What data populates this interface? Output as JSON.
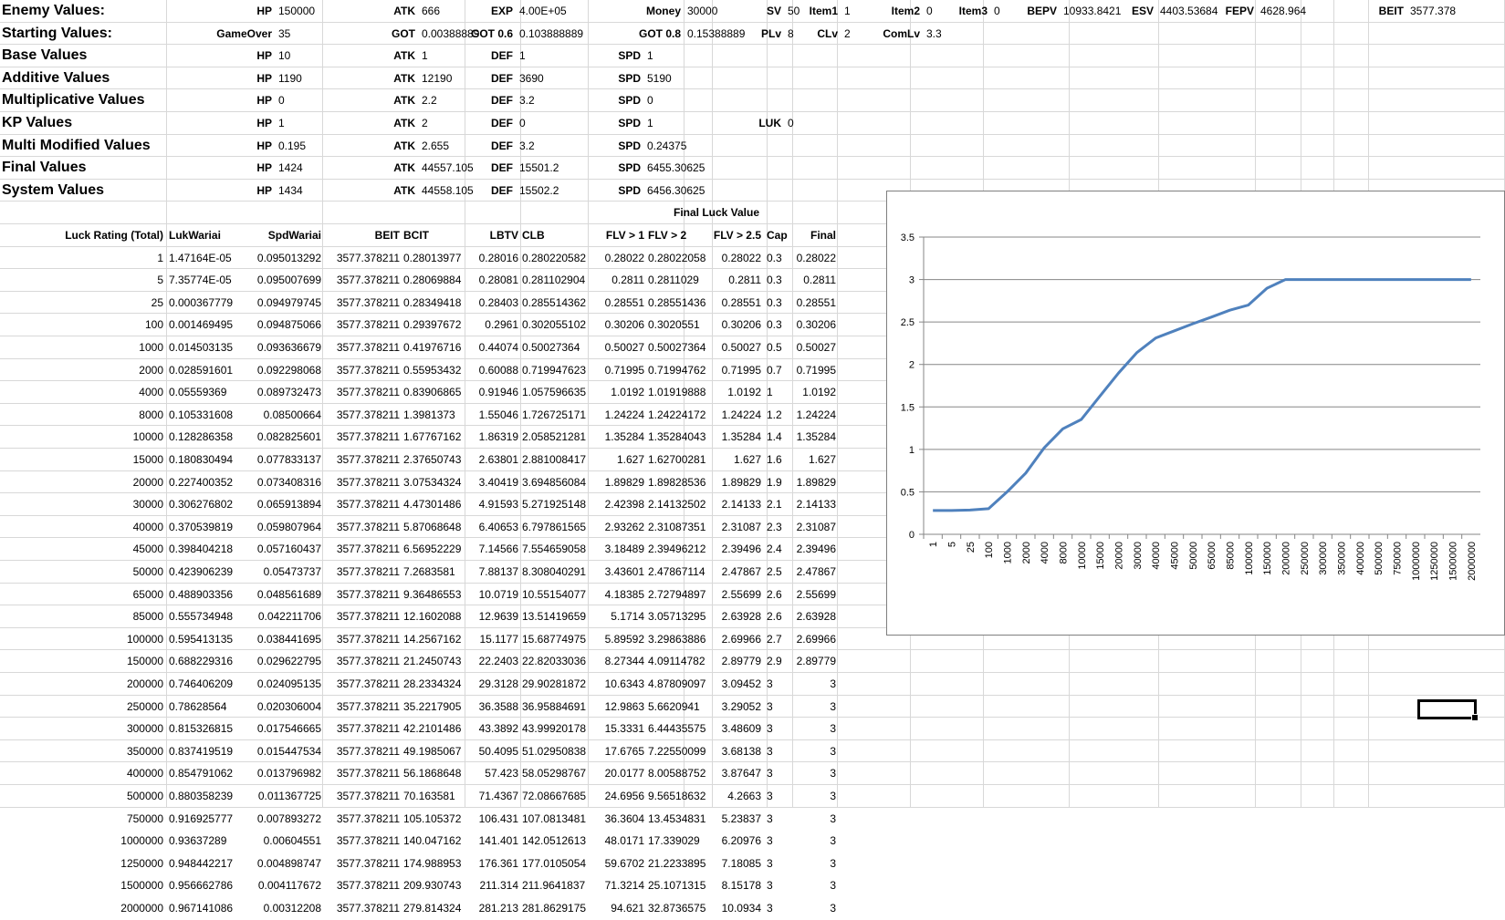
{
  "columns": [
    0,
    183,
    354,
    510,
    571,
    645,
    750,
    781,
    841,
    869,
    918,
    998,
    1078,
    1172,
    1270,
    1376,
    1426,
    1462,
    1500,
    1649
  ],
  "rows_top": 0,
  "row_height": 24.6,
  "sheet": {
    "summary_rows": [
      {
        "label": "Enemy Values:",
        "cells": [
          [
            "HP",
            "150000"
          ],
          [
            "ATK",
            "666"
          ],
          [
            "EXP",
            "4.00E+05"
          ],
          [
            "Money",
            "30000"
          ],
          [
            "SV",
            "50"
          ],
          [
            "Item1",
            "1"
          ],
          [
            "Item2",
            "0"
          ],
          [
            "Item3",
            "0"
          ],
          [
            "BEPV",
            "10933.8421"
          ],
          [
            "ESV",
            "4403.53684"
          ],
          [
            "FEPV",
            "4628.964"
          ],
          [
            "BEIT",
            "3577.378"
          ]
        ]
      },
      {
        "label": "Starting Values:",
        "cells": [
          [
            "GameOver",
            "35"
          ],
          [
            "GOT",
            "0.00388889"
          ],
          [
            "GOT 0.6",
            "0.103888889"
          ],
          [
            "GOT 0.8",
            "0.15388889"
          ],
          [
            "PLv",
            "8"
          ],
          [
            "CLv",
            "2"
          ],
          [
            "ComLv",
            "3.3"
          ]
        ]
      },
      {
        "label": "Base Values",
        "cells": [
          [
            "HP",
            "10"
          ],
          [
            "ATK",
            "1"
          ],
          [
            "DEF",
            "1"
          ],
          [
            "SPD",
            "1"
          ]
        ]
      },
      {
        "label": "Additive Values",
        "cells": [
          [
            "HP",
            "1190"
          ],
          [
            "ATK",
            "12190"
          ],
          [
            "DEF",
            "3690"
          ],
          [
            "SPD",
            "5190"
          ]
        ]
      },
      {
        "label": "Multiplicative Values",
        "cells": [
          [
            "HP",
            "0"
          ],
          [
            "ATK",
            "2.2"
          ],
          [
            "DEF",
            "3.2"
          ],
          [
            "SPD",
            "0"
          ]
        ]
      },
      {
        "label": "KP Values",
        "cells": [
          [
            "HP",
            "1"
          ],
          [
            "ATK",
            "2"
          ],
          [
            "DEF",
            "0"
          ],
          [
            "SPD",
            "1"
          ],
          [
            "LUK",
            "0"
          ]
        ]
      },
      {
        "label": "Multi Modified Values",
        "cells": [
          [
            "HP",
            "0.195"
          ],
          [
            "ATK",
            "2.655"
          ],
          [
            "DEF",
            "3.2"
          ],
          [
            "SPD",
            "0.24375"
          ]
        ]
      },
      {
        "label": "Final Values",
        "cells": [
          [
            "HP",
            "1424"
          ],
          [
            "ATK",
            "44557.105"
          ],
          [
            "DEF",
            "15501.2"
          ],
          [
            "SPD",
            "6455.30625"
          ]
        ]
      },
      {
        "label": "System Values",
        "cells": [
          [
            "HP",
            "1434"
          ],
          [
            "ATK",
            "44558.105"
          ],
          [
            "DEF",
            "15502.2"
          ],
          [
            "SPD",
            "6456.30625"
          ]
        ]
      }
    ],
    "final_luck_title": "Final Luck Value",
    "table_headers": [
      "Luck Rating (Total)",
      "LukWariai",
      "SpdWariai",
      "BEIT",
      "BCIT",
      "LBTV",
      "CLB",
      "FLV > 1",
      "FLV > 2",
      "FLV > 2.5",
      "Cap",
      "Final"
    ],
    "table_rows": [
      [
        "1",
        "1.47164E-05",
        "0.095013292",
        "3577.378211",
        "0.28013977",
        "0.28016",
        "0.280220582",
        "0.28022",
        "0.28022058",
        "0.28022",
        "0.3",
        "0.28022"
      ],
      [
        "5",
        "7.35774E-05",
        "0.095007699",
        "3577.378211",
        "0.28069884",
        "0.28081",
        "0.281102904",
        "0.2811",
        "0.2811029",
        "0.2811",
        "0.3",
        "0.2811"
      ],
      [
        "25",
        "0.000367779",
        "0.094979745",
        "3577.378211",
        "0.28349418",
        "0.28403",
        "0.285514362",
        "0.28551",
        "0.28551436",
        "0.28551",
        "0.3",
        "0.28551"
      ],
      [
        "100",
        "0.001469495",
        "0.094875066",
        "3577.378211",
        "0.29397672",
        "0.2961",
        "0.302055102",
        "0.30206",
        "0.3020551",
        "0.30206",
        "0.3",
        "0.30206"
      ],
      [
        "1000",
        "0.014503135",
        "0.093636679",
        "3577.378211",
        "0.41976716",
        "0.44074",
        "0.50027364",
        "0.50027",
        "0.50027364",
        "0.50027",
        "0.5",
        "0.50027"
      ],
      [
        "2000",
        "0.028591601",
        "0.092298068",
        "3577.378211",
        "0.55953432",
        "0.60088",
        "0.719947623",
        "0.71995",
        "0.71994762",
        "0.71995",
        "0.7",
        "0.71995"
      ],
      [
        "4000",
        "0.05559369",
        "0.089732473",
        "3577.378211",
        "0.83906865",
        "0.91946",
        "1.057596635",
        "1.0192",
        "1.01919888",
        "1.0192",
        "1",
        "1.0192"
      ],
      [
        "8000",
        "0.105331608",
        "0.08500664",
        "3577.378211",
        "1.3981373",
        "1.55046",
        "1.726725171",
        "1.24224",
        "1.24224172",
        "1.24224",
        "1.2",
        "1.24224"
      ],
      [
        "10000",
        "0.128286358",
        "0.082825601",
        "3577.378211",
        "1.67767162",
        "1.86319",
        "2.058521281",
        "1.35284",
        "1.35284043",
        "1.35284",
        "1.4",
        "1.35284"
      ],
      [
        "15000",
        "0.180830494",
        "0.077833137",
        "3577.378211",
        "2.37650743",
        "2.63801",
        "2.881008417",
        "1.627",
        "1.62700281",
        "1.627",
        "1.6",
        "1.627"
      ],
      [
        "20000",
        "0.227400352",
        "0.073408316",
        "3577.378211",
        "3.07534324",
        "3.40419",
        "3.694856084",
        "1.89829",
        "1.89828536",
        "1.89829",
        "1.9",
        "1.89829"
      ],
      [
        "30000",
        "0.306276802",
        "0.065913894",
        "3577.378211",
        "4.47301486",
        "4.91593",
        "5.271925148",
        "2.42398",
        "2.14132502",
        "2.14133",
        "2.1",
        "2.14133"
      ],
      [
        "40000",
        "0.370539819",
        "0.059807964",
        "3577.378211",
        "5.87068648",
        "6.40653",
        "6.797861565",
        "2.93262",
        "2.31087351",
        "2.31087",
        "2.3",
        "2.31087"
      ],
      [
        "45000",
        "0.398404218",
        "0.057160437",
        "3577.378211",
        "6.56952229",
        "7.14566",
        "7.554659058",
        "3.18489",
        "2.39496212",
        "2.39496",
        "2.4",
        "2.39496"
      ],
      [
        "50000",
        "0.423906239",
        "0.05473737",
        "3577.378211",
        "7.2683581",
        "7.88137",
        "8.308040291",
        "3.43601",
        "2.47867114",
        "2.47867",
        "2.5",
        "2.47867"
      ],
      [
        "65000",
        "0.488903356",
        "0.048561689",
        "3577.378211",
        "9.36486553",
        "10.0719",
        "10.55154077",
        "4.18385",
        "2.72794897",
        "2.55699",
        "2.6",
        "2.55699"
      ],
      [
        "85000",
        "0.555734948",
        "0.042211706",
        "3577.378211",
        "12.1602088",
        "12.9639",
        "13.51419659",
        "5.1714",
        "3.05713295",
        "2.63928",
        "2.6",
        "2.63928"
      ],
      [
        "100000",
        "0.595413135",
        "0.038441695",
        "3577.378211",
        "14.2567162",
        "15.1177",
        "15.68774975",
        "5.89592",
        "3.29863886",
        "2.69966",
        "2.7",
        "2.69966"
      ],
      [
        "150000",
        "0.688229316",
        "0.029622795",
        "3577.378211",
        "21.2450743",
        "22.2403",
        "22.82033036",
        "8.27344",
        "4.09114782",
        "2.89779",
        "2.9",
        "2.89779"
      ],
      [
        "200000",
        "0.746406209",
        "0.024095135",
        "3577.378211",
        "28.2334324",
        "29.3128",
        "29.90281872",
        "10.6343",
        "4.87809097",
        "3.09452",
        "3",
        "3"
      ],
      [
        "250000",
        "0.78628564",
        "0.020306004",
        "3577.378211",
        "35.2217905",
        "36.3588",
        "36.95884691",
        "12.9863",
        "5.6620941",
        "3.29052",
        "3",
        "3"
      ],
      [
        "300000",
        "0.815326815",
        "0.017546665",
        "3577.378211",
        "42.2101486",
        "43.3892",
        "43.99920178",
        "15.3331",
        "6.44435575",
        "3.48609",
        "3",
        "3"
      ],
      [
        "350000",
        "0.837419519",
        "0.015447534",
        "3577.378211",
        "49.1985067",
        "50.4095",
        "51.02950838",
        "17.6765",
        "7.22550099",
        "3.68138",
        "3",
        "3"
      ],
      [
        "400000",
        "0.854791062",
        "0.013796982",
        "3577.378211",
        "56.1868648",
        "57.423",
        "58.05298767",
        "20.0177",
        "8.00588752",
        "3.87647",
        "3",
        "3"
      ],
      [
        "500000",
        "0.880358239",
        "0.011367725",
        "3577.378211",
        "70.163581",
        "71.4367",
        "72.08667685",
        "24.6956",
        "9.56518632",
        "4.2663",
        "3",
        "3"
      ],
      [
        "750000",
        "0.916925777",
        "0.007893272",
        "3577.378211",
        "105.105372",
        "106.431",
        "107.0813481",
        "36.3604",
        "13.4534831",
        "5.23837",
        "3",
        "3"
      ],
      [
        "1000000",
        "0.93637289",
        "0.00604551",
        "3577.378211",
        "140.047162",
        "141.401",
        "142.0512613",
        "48.0171",
        "17.339029",
        "6.20976",
        "3",
        "3"
      ],
      [
        "1250000",
        "0.948442217",
        "0.004898747",
        "3577.378211",
        "174.988953",
        "176.361",
        "177.0105054",
        "59.6702",
        "21.2233895",
        "7.18085",
        "3",
        "3"
      ],
      [
        "1500000",
        "0.956662786",
        "0.004117672",
        "3577.378211",
        "209.930743",
        "211.314",
        "211.9641837",
        "71.3214",
        "25.1071315",
        "8.15178",
        "3",
        "3"
      ],
      [
        "2000000",
        "0.967141086",
        "0.00312208",
        "3577.378211",
        "279.814324",
        "281.213",
        "281.8629175",
        "94.621",
        "32.8736575",
        "10.0934",
        "3",
        "3"
      ]
    ]
  },
  "chart_data": {
    "type": "line",
    "title": "",
    "xlabel": "",
    "ylabel": "",
    "categories": [
      "1",
      "5",
      "25",
      "100",
      "1000",
      "2000",
      "4000",
      "8000",
      "10000",
      "15000",
      "20000",
      "30000",
      "40000",
      "45000",
      "50000",
      "65000",
      "85000",
      "100000",
      "150000",
      "200000",
      "250000",
      "300000",
      "350000",
      "400000",
      "500000",
      "750000",
      "1000000",
      "1250000",
      "1500000",
      "2000000"
    ],
    "series": [
      {
        "values": [
          0.28022,
          0.2811,
          0.28551,
          0.30206,
          0.50027,
          0.71995,
          1.0192,
          1.24224,
          1.35284,
          1.627,
          1.89829,
          2.14133,
          2.31087,
          2.39496,
          2.47867,
          2.55699,
          2.63928,
          2.69966,
          2.89779,
          3,
          3,
          3,
          3,
          3,
          3,
          3,
          3,
          3,
          3,
          3
        ],
        "color": "#4f81bd"
      }
    ],
    "ylim": [
      0,
      3.5
    ],
    "yticks": [
      "0",
      "0.5",
      "1",
      "1.5",
      "2",
      "2.5",
      "3",
      "3.5"
    ],
    "grid": true,
    "legend": "none"
  }
}
